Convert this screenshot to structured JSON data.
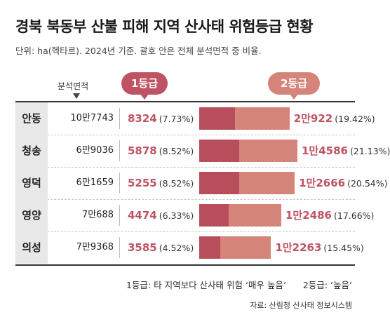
{
  "title": "경북 북동부 산불 피해 지역 산사태 위험등급 현황",
  "subtitle": "단위: ha(헥타르). 2024년 기준. 괄호 안은 전체 분석면적 중 비율.",
  "area_column_label": "분석면적",
  "grade1_label": "1등급",
  "grade2_label": "2등급",
  "legend": {
    "grade1": "1등급: 타 지역보다 산사태 위험 ‘매우 높음’",
    "grade2": "2등급: ‘높음’"
  },
  "source": "자료: 산림청 산사태 정보시스템",
  "colors": {
    "grade1": "#be5363",
    "grade2": "#d58479",
    "grade1_bar": "#b84e5c"
  },
  "chart_data": {
    "type": "bar",
    "categories": [
      "안동",
      "청송",
      "영덕",
      "영양",
      "의성"
    ],
    "area": [
      "10만7743",
      "6만9036",
      "6만1659",
      "7만688",
      "7만9368"
    ],
    "area_values": [
      107743,
      69036,
      61659,
      70688,
      79368
    ],
    "series": [
      {
        "name": "1등급",
        "values": [
          8324,
          5878,
          5255,
          4474,
          3585
        ],
        "labels": [
          "8324",
          "5878",
          "5255",
          "4474",
          "3585"
        ],
        "pct_labels": [
          "(7.73%)",
          "(8.52%)",
          "(8.52%)",
          "(6.33%)",
          "(4.52%)"
        ],
        "pct": [
          7.73,
          8.52,
          8.52,
          6.33,
          4.52
        ]
      },
      {
        "name": "2등급",
        "values": [
          20922,
          14586,
          12666,
          12486,
          12263
        ],
        "labels": [
          "2만922",
          "1만4586",
          "1만2666",
          "1만2486",
          "1만2263"
        ],
        "pct_labels": [
          "(19.42%)",
          "(21.13%)",
          "(20.54%)",
          "(17.66%)",
          "(15.45%)"
        ],
        "pct": [
          19.42,
          21.13,
          20.54,
          17.66,
          15.45
        ]
      }
    ]
  }
}
